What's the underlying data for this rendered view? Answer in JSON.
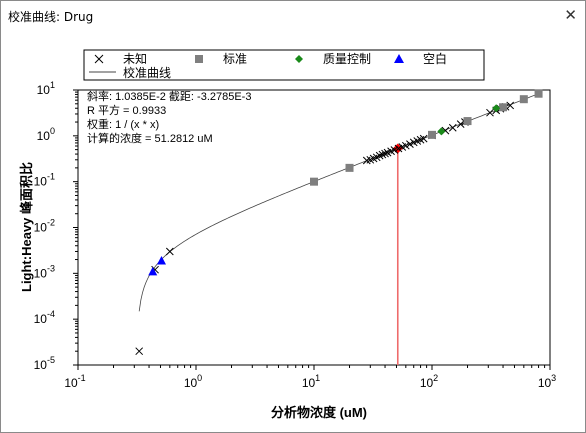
{
  "window": {
    "title": "校准曲线: Drug",
    "close_glyph": "✕"
  },
  "legend": {
    "items": [
      {
        "label": "未知",
        "symbol": "cross",
        "color": "#000000"
      },
      {
        "label": "标准",
        "symbol": "square",
        "color": "#7f7f7f"
      },
      {
        "label": "质量控制",
        "symbol": "diamond",
        "color": "#1a8a1a"
      },
      {
        "label": "空白",
        "symbol": "triangle",
        "color": "#0000ff"
      }
    ],
    "curve_label": "校准曲线"
  },
  "stats": {
    "line1": "斜率: 1.0385E-2 截距: -3.2785E-3",
    "line2": "R 平方 = 0.9933",
    "line3": "权重: 1 / (x * x)",
    "line4": "计算的浓度 = 51.2812 uM"
  },
  "colors": {
    "curve": "#444444",
    "calc_line": "#ee6b6b",
    "calc_point": "#ff0000"
  },
  "chart_data": {
    "type": "scatter",
    "x_scale": "log",
    "y_scale": "log",
    "xlim": [
      0.1,
      1000
    ],
    "ylim": [
      1e-05,
      10
    ],
    "xlabel": "分析物浓度 (uM)",
    "ylabel": "Light:Heavy 峰面积比",
    "x_ticks": [
      {
        "base": "10",
        "exp": "-1"
      },
      {
        "base": "10",
        "exp": "0"
      },
      {
        "base": "10",
        "exp": "1"
      },
      {
        "base": "10",
        "exp": "2"
      },
      {
        "base": "10",
        "exp": "3"
      }
    ],
    "y_ticks": [
      {
        "base": "10",
        "exp": "-5"
      },
      {
        "base": "10",
        "exp": "-4"
      },
      {
        "base": "10",
        "exp": "-3"
      },
      {
        "base": "10",
        "exp": "-2"
      },
      {
        "base": "10",
        "exp": "-1"
      },
      {
        "base": "10",
        "exp": "0"
      },
      {
        "base": "10",
        "exp": "1"
      }
    ],
    "calibration_curve": {
      "slope": 0.010385,
      "intercept": -0.0032785,
      "x_range": [
        0.33,
        800
      ]
    },
    "calculated_concentration": 51.2812,
    "series": [
      {
        "name": "未知",
        "symbol": "cross",
        "points": [
          [
            0.33,
            2e-05
          ],
          [
            0.45,
            0.0012
          ],
          [
            0.6,
            0.003
          ],
          [
            20,
            0.2
          ],
          [
            28,
            0.29
          ],
          [
            30,
            0.3
          ],
          [
            32,
            0.32
          ],
          [
            34,
            0.34
          ],
          [
            36,
            0.37
          ],
          [
            38,
            0.39
          ],
          [
            40,
            0.41
          ],
          [
            42,
            0.43
          ],
          [
            45,
            0.46
          ],
          [
            48,
            0.49
          ],
          [
            52,
            0.53
          ],
          [
            56,
            0.57
          ],
          [
            60,
            0.61
          ],
          [
            65,
            0.66
          ],
          [
            70,
            0.72
          ],
          [
            75,
            0.77
          ],
          [
            80,
            0.82
          ],
          [
            85,
            0.87
          ],
          [
            100,
            1.02
          ],
          [
            130,
            1.3
          ],
          [
            150,
            1.5
          ],
          [
            175,
            1.8
          ],
          [
            190,
            2.0
          ],
          [
            310,
            3.2
          ],
          [
            350,
            3.6
          ],
          [
            380,
            3.9
          ],
          [
            420,
            4.3
          ],
          [
            460,
            4.6
          ]
        ]
      },
      {
        "name": "标准",
        "symbol": "square",
        "points": [
          [
            10,
            0.1
          ],
          [
            20,
            0.2
          ],
          [
            100,
            1.05
          ],
          [
            200,
            2.1
          ],
          [
            400,
            4.2
          ],
          [
            600,
            6.3
          ],
          [
            800,
            8.3
          ]
        ]
      },
      {
        "name": "质量控制",
        "symbol": "diamond",
        "points": [
          [
            120,
            1.25
          ],
          [
            350,
            4.0
          ]
        ]
      },
      {
        "name": "空白",
        "symbol": "triangle",
        "points": [
          [
            0.43,
            0.0011
          ],
          [
            0.51,
            0.0019
          ]
        ]
      }
    ]
  }
}
